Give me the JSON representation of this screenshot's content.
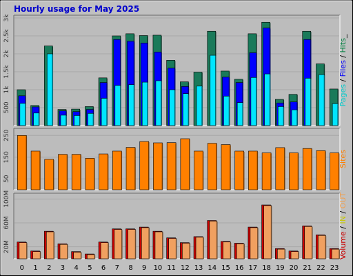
{
  "title": "Hourly usage for May 2025",
  "chart_data": [
    {
      "type": "bar",
      "name_parts": [
        {
          "text": "Pages",
          "color": "#00cccc"
        },
        {
          "text": " / ",
          "color": "#000000"
        },
        {
          "text": "Files",
          "color": "#0000ff"
        },
        {
          "text": " / ",
          "color": "#000000"
        },
        {
          "text": "Hits",
          "color": "#008040"
        },
        {
          "text": "_",
          "color": "#000000"
        }
      ],
      "categories": [
        "0",
        "1",
        "2",
        "3",
        "4",
        "5",
        "6",
        "7",
        "8",
        "9",
        "10",
        "11",
        "12",
        "13",
        "14",
        "15",
        "16",
        "17",
        "18",
        "19",
        "20",
        "21",
        "22",
        "23"
      ],
      "ylim": [
        0,
        3000
      ],
      "yticks": [
        {
          "v": 500,
          "label": "500"
        },
        {
          "v": 1000,
          "label": "1k"
        },
        {
          "v": 1500,
          "label": "1.5k"
        },
        {
          "v": 2000,
          "label": "2k"
        },
        {
          "v": 2500,
          "label": "2.5k"
        },
        {
          "v": 3000,
          "label": "3k"
        }
      ],
      "series": [
        {
          "name": "Hits",
          "color": "#1a7a5a",
          "values": [
            1000,
            560,
            2220,
            450,
            460,
            530,
            1330,
            2500,
            2560,
            2510,
            2520,
            1820,
            1220,
            1490,
            2630,
            1520,
            1290,
            2560,
            2880,
            730,
            870,
            2630,
            1720,
            1020
          ]
        },
        {
          "name": "Files",
          "color": "#0000ff",
          "values": [
            830,
            520,
            0,
            410,
            390,
            450,
            1200,
            2400,
            2350,
            2300,
            2050,
            1600,
            1090,
            0,
            0,
            1350,
            1200,
            2030,
            2720,
            630,
            660,
            2400,
            0,
            0
          ]
        },
        {
          "name": "Pages",
          "color": "#00e5ff",
          "values": [
            620,
            350,
            2000,
            290,
            280,
            340,
            760,
            1120,
            1140,
            1210,
            1250,
            1000,
            890,
            1100,
            1960,
            820,
            640,
            1340,
            1440,
            530,
            440,
            1320,
            1420,
            610
          ]
        }
      ]
    },
    {
      "type": "bar",
      "name_parts": [
        {
          "text": "Sites",
          "color": "#ff8000"
        }
      ],
      "categories": [
        "0",
        "1",
        "2",
        "3",
        "4",
        "5",
        "6",
        "7",
        "8",
        "9",
        "10",
        "11",
        "12",
        "13",
        "14",
        "15",
        "16",
        "17",
        "18",
        "19",
        "20",
        "21",
        "22",
        "23"
      ],
      "ylim": [
        0,
        270
      ],
      "yticks": [
        {
          "v": 50,
          "label": "50"
        },
        {
          "v": 150,
          "label": "150"
        },
        {
          "v": 250,
          "label": "250"
        }
      ],
      "series": [
        {
          "name": "Sites",
          "color": "#ff8000",
          "values": [
            250,
            178,
            140,
            163,
            163,
            145,
            165,
            178,
            195,
            222,
            216,
            217,
            235,
            178,
            214,
            208,
            178,
            178,
            170,
            194,
            170,
            190,
            180,
            170
          ]
        }
      ]
    },
    {
      "type": "bar",
      "name_parts": [
        {
          "text": "Volume",
          "color": "#cc0000"
        },
        {
          "text": " / ",
          "color": "#000000"
        },
        {
          "text": "IN",
          "color": "#c8c800"
        },
        {
          "text": " / ",
          "color": "#000000"
        },
        {
          "text": "OUT",
          "color": "#f0a050"
        }
      ],
      "categories": [
        "0",
        "1",
        "2",
        "3",
        "4",
        "5",
        "6",
        "7",
        "8",
        "9",
        "10",
        "11",
        "12",
        "13",
        "14",
        "15",
        "16",
        "17",
        "18",
        "19",
        "20",
        "21",
        "22",
        "23"
      ],
      "ylim": [
        0,
        105
      ],
      "yticks": [
        {
          "v": 20,
          "label": "20M"
        },
        {
          "v": 60,
          "label": "60M"
        },
        {
          "v": 100,
          "label": "100M"
        }
      ],
      "series": [
        {
          "name": "Volume",
          "color": "#cc0000",
          "values": [
            28,
            13,
            46,
            25,
            12,
            8,
            28,
            50,
            50,
            53,
            46,
            35,
            27,
            37,
            64,
            29,
            26,
            53,
            90,
            17,
            13,
            55,
            40,
            17
          ]
        },
        {
          "name": "OUT",
          "color": "#f0a060",
          "values": [
            27,
            12,
            45,
            24,
            11,
            7,
            27,
            49,
            49,
            52,
            45,
            34,
            26,
            36,
            63,
            28,
            25,
            52,
            89,
            16,
            12,
            54,
            39,
            16
          ]
        }
      ]
    }
  ]
}
